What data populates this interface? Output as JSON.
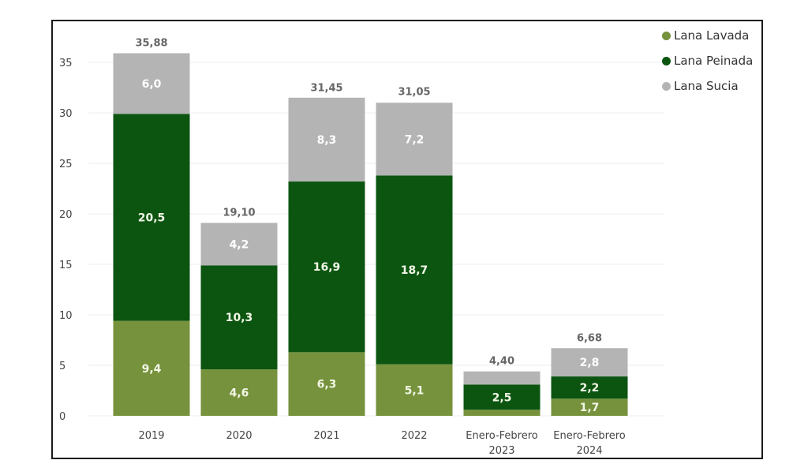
{
  "chart_data": {
    "type": "bar",
    "stacked": true,
    "title": "",
    "xlabel": "",
    "ylabel": "",
    "ylim": [
      0,
      35
    ],
    "yticks": [
      0,
      5,
      10,
      15,
      20,
      25,
      30,
      35
    ],
    "grid": true,
    "legend_position": "top-right",
    "categories": [
      "2019",
      "2020",
      "2021",
      "2022",
      "Enero-Febrero 2023",
      "Enero-Febrero 2024"
    ],
    "category_lines": [
      [
        "2019"
      ],
      [
        "2020"
      ],
      [
        "2021"
      ],
      [
        "2022"
      ],
      [
        "Enero-Febrero",
        "2023"
      ],
      [
        "Enero-Febrero",
        "2024"
      ]
    ],
    "series": [
      {
        "name": "Lana Lavada",
        "color": "#76923c",
        "values": [
          9.4,
          4.6,
          6.3,
          5.1,
          0.6,
          1.7
        ],
        "labels": [
          "9,4",
          "4,6",
          "6,3",
          "5,1",
          "",
          "1,7"
        ]
      },
      {
        "name": "Lana Peinada",
        "color": "#0b5511",
        "values": [
          20.5,
          10.3,
          16.9,
          18.7,
          2.5,
          2.2
        ],
        "labels": [
          "20,5",
          "10,3",
          "16,9",
          "18,7",
          "2,5",
          "2,2"
        ]
      },
      {
        "name": "Lana Sucia",
        "color": "#b4b4b4",
        "values": [
          6.0,
          4.2,
          8.3,
          7.2,
          1.3,
          2.8
        ],
        "labels": [
          "6,0",
          "4,2",
          "8,3",
          "7,2",
          "",
          "2,8"
        ]
      }
    ],
    "totals": [
      35.88,
      19.1,
      31.45,
      31.05,
      4.4,
      6.68
    ],
    "total_labels": [
      "35,88",
      "19,10",
      "31,45",
      "31,05",
      "4,40",
      "6,68"
    ]
  },
  "legend": {
    "items": [
      {
        "label": "Lana Lavada",
        "color": "#76923c"
      },
      {
        "label": "Lana Peinada",
        "color": "#0b5511"
      },
      {
        "label": "Lana Sucia",
        "color": "#b4b4b4"
      }
    ]
  }
}
